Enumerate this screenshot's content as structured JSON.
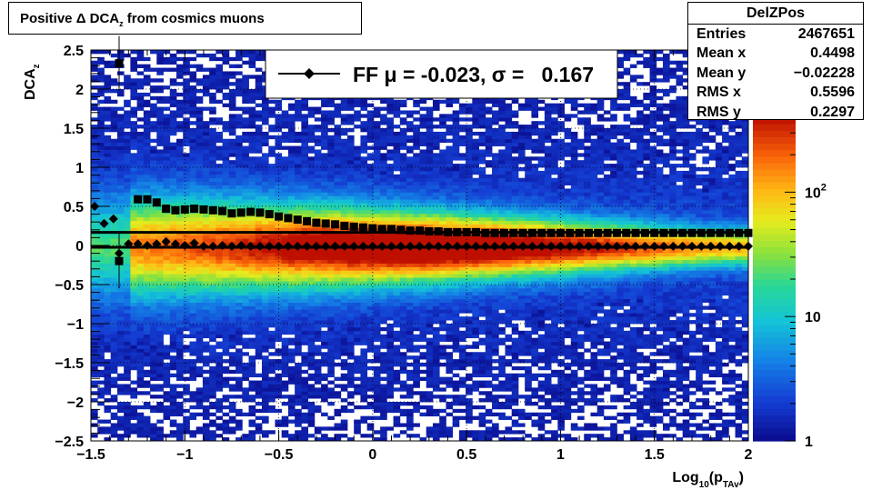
{
  "title": {
    "main": "Positive Δ DCA",
    "sub": "z",
    "rest": " from cosmics muons"
  },
  "stats": {
    "name": "DelZPos",
    "rows": [
      {
        "key": "Entries",
        "value": "2467651"
      },
      {
        "key": "Mean x",
        "value": "0.4498"
      },
      {
        "key": "Mean y",
        "value": "−0.02228"
      },
      {
        "key": "RMS x",
        "value": "0.5596"
      },
      {
        "key": "RMS y",
        "value": "0.2297"
      }
    ]
  },
  "legend": {
    "label": "FF μ = -0.023, σ =   0.167"
  },
  "chart_data": {
    "type": "heatmap",
    "xlabel": "Log",
    "xlabel_sub": "10",
    "xlabel_paren": "(p",
    "xlabel_paren_sub": "TAv",
    "xlabel_close": ")",
    "ylabel": "DCA",
    "ylabel_sub": "z",
    "xlim": [
      -1.5,
      2
    ],
    "ylim": [
      -2.5,
      2.5
    ],
    "x_ticks": [
      "−1.5",
      "−1",
      "−0.5",
      "0",
      "0.5",
      "1",
      "1.5",
      "2"
    ],
    "y_ticks": [
      "−2.5",
      "−2",
      "−1.5",
      "−1",
      "−0.5",
      "0",
      "0.5",
      "1",
      "1.5",
      "2",
      "2.5"
    ],
    "z_scale": "log",
    "z_range": [
      1,
      400
    ],
    "z_ticks": [
      {
        "value": 1,
        "base": "1",
        "exp": ""
      },
      {
        "value": 10,
        "base": "10",
        "exp": ""
      },
      {
        "value": 100,
        "base": "10",
        "exp": "2"
      }
    ],
    "grid": true,
    "colors": {
      "low": "#0a0a8c",
      "high": "#c01000"
    },
    "series": [
      {
        "marker": "square",
        "points": [
          [
            -1.35,
            2.33
          ],
          [
            -1.35,
            -0.2
          ],
          [
            -1.25,
            0.59
          ],
          [
            -1.2,
            0.59
          ],
          [
            -1.15,
            0.55
          ],
          [
            -1.1,
            0.47
          ],
          [
            -1.05,
            0.45
          ],
          [
            -1.0,
            0.46
          ],
          [
            -0.95,
            0.47
          ],
          [
            -0.9,
            0.46
          ],
          [
            -0.85,
            0.45
          ],
          [
            -0.8,
            0.44
          ],
          [
            -0.75,
            0.41
          ],
          [
            -0.7,
            0.42
          ],
          [
            -0.65,
            0.43
          ],
          [
            -0.6,
            0.42
          ],
          [
            -0.55,
            0.4
          ],
          [
            -0.5,
            0.37
          ],
          [
            -0.45,
            0.35
          ],
          [
            -0.4,
            0.33
          ],
          [
            -0.35,
            0.31
          ],
          [
            -0.3,
            0.29
          ],
          [
            -0.25,
            0.28
          ],
          [
            -0.2,
            0.27
          ],
          [
            -0.15,
            0.25
          ],
          [
            -0.1,
            0.24
          ],
          [
            -0.05,
            0.23
          ],
          [
            0.0,
            0.22
          ],
          [
            0.05,
            0.21
          ],
          [
            0.1,
            0.21
          ],
          [
            0.15,
            0.2
          ],
          [
            0.2,
            0.19
          ],
          [
            0.25,
            0.19
          ],
          [
            0.3,
            0.18
          ],
          [
            0.35,
            0.18
          ],
          [
            0.4,
            0.17
          ],
          [
            0.45,
            0.17
          ],
          [
            0.5,
            0.17
          ],
          [
            0.55,
            0.17
          ],
          [
            0.6,
            0.16
          ],
          [
            0.65,
            0.16
          ],
          [
            0.7,
            0.16
          ],
          [
            0.75,
            0.16
          ],
          [
            0.8,
            0.16
          ],
          [
            0.85,
            0.16
          ],
          [
            0.9,
            0.16
          ],
          [
            0.95,
            0.16
          ],
          [
            1.0,
            0.16
          ],
          [
            1.05,
            0.16
          ],
          [
            1.1,
            0.16
          ],
          [
            1.15,
            0.16
          ],
          [
            1.2,
            0.16
          ],
          [
            1.25,
            0.16
          ],
          [
            1.3,
            0.16
          ],
          [
            1.35,
            0.16
          ],
          [
            1.4,
            0.16
          ],
          [
            1.45,
            0.16
          ],
          [
            1.5,
            0.16
          ],
          [
            1.55,
            0.16
          ],
          [
            1.6,
            0.16
          ],
          [
            1.65,
            0.16
          ],
          [
            1.7,
            0.16
          ],
          [
            1.75,
            0.16
          ],
          [
            1.8,
            0.16
          ],
          [
            1.85,
            0.16
          ],
          [
            1.9,
            0.16
          ],
          [
            1.95,
            0.16
          ],
          [
            2.0,
            0.16
          ]
        ]
      },
      {
        "marker": "diamond",
        "name": "FF",
        "points": [
          [
            -1.48,
            0.5
          ],
          [
            -1.43,
            0.28
          ],
          [
            -1.38,
            0.34
          ],
          [
            -1.35,
            -0.1
          ],
          [
            -1.3,
            0.02
          ],
          [
            -1.25,
            0.02
          ],
          [
            -1.2,
            0.0
          ],
          [
            -1.15,
            0.02
          ],
          [
            -1.1,
            0.05
          ],
          [
            -1.05,
            0.02
          ],
          [
            -1.0,
            0.0
          ],
          [
            -0.95,
            0.03
          ],
          [
            -0.9,
            -0.01
          ],
          [
            -0.85,
            -0.01
          ],
          [
            -0.8,
            0.0
          ],
          [
            -0.75,
            -0.01
          ],
          [
            -0.7,
            0.0
          ],
          [
            -0.65,
            -0.01
          ],
          [
            -0.6,
            -0.01
          ],
          [
            -0.55,
            -0.01
          ],
          [
            -0.5,
            -0.01
          ],
          [
            -0.45,
            -0.01
          ],
          [
            -0.4,
            -0.01
          ],
          [
            -0.35,
            -0.01
          ],
          [
            -0.3,
            -0.01
          ],
          [
            -0.25,
            -0.01
          ],
          [
            -0.2,
            -0.01
          ],
          [
            -0.15,
            -0.01
          ],
          [
            -0.1,
            -0.01
          ],
          [
            -0.05,
            -0.01
          ],
          [
            0.0,
            -0.01
          ],
          [
            0.05,
            -0.01
          ],
          [
            0.1,
            -0.01
          ],
          [
            0.15,
            -0.01
          ],
          [
            0.2,
            -0.01
          ],
          [
            0.25,
            -0.01
          ],
          [
            0.3,
            -0.01
          ],
          [
            0.35,
            -0.01
          ],
          [
            0.4,
            -0.01
          ],
          [
            0.45,
            -0.01
          ],
          [
            0.5,
            -0.01
          ],
          [
            0.55,
            -0.01
          ],
          [
            0.6,
            -0.01
          ],
          [
            0.65,
            -0.01
          ],
          [
            0.7,
            -0.01
          ],
          [
            0.75,
            -0.01
          ],
          [
            0.8,
            -0.01
          ],
          [
            0.85,
            -0.01
          ],
          [
            0.9,
            -0.01
          ],
          [
            0.95,
            -0.01
          ],
          [
            1.0,
            -0.01
          ],
          [
            1.05,
            -0.01
          ],
          [
            1.1,
            -0.01
          ],
          [
            1.15,
            -0.01
          ],
          [
            1.2,
            -0.01
          ],
          [
            1.25,
            -0.01
          ],
          [
            1.3,
            -0.01
          ],
          [
            1.35,
            -0.01
          ],
          [
            1.4,
            -0.01
          ],
          [
            1.45,
            -0.01
          ],
          [
            1.5,
            -0.01
          ],
          [
            1.55,
            -0.01
          ],
          [
            1.6,
            -0.01
          ],
          [
            1.65,
            -0.01
          ],
          [
            1.7,
            -0.01
          ],
          [
            1.75,
            -0.01
          ],
          [
            1.8,
            -0.01
          ],
          [
            1.85,
            -0.01
          ],
          [
            1.9,
            -0.01
          ],
          [
            1.95,
            -0.01
          ],
          [
            2.0,
            -0.01
          ]
        ]
      }
    ],
    "fit_lines": [
      {
        "x": [
          -1.5,
          2
        ],
        "y": [
          0.167,
          0.167
        ]
      },
      {
        "x": [
          -1.5,
          2
        ],
        "y": [
          -0.023,
          -0.023
        ]
      }
    ]
  }
}
